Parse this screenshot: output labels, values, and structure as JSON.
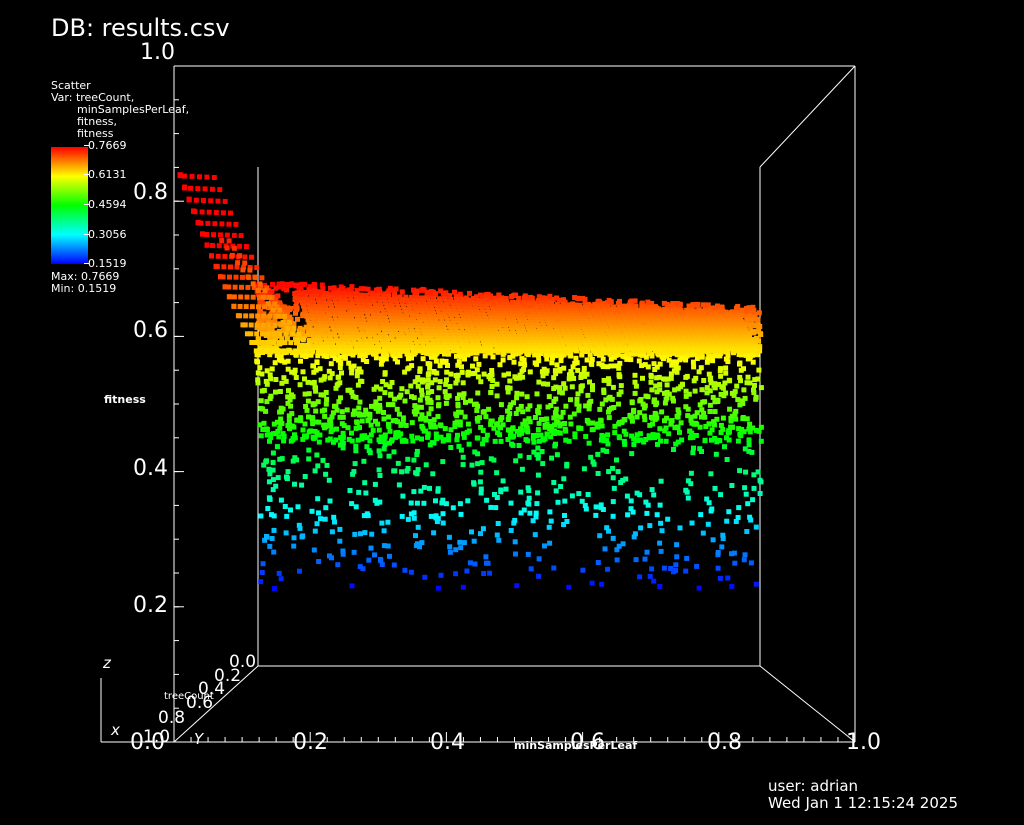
{
  "header": {
    "db_title": "DB: results.csv"
  },
  "legend": {
    "plot_type": "Scatter",
    "var_prefix": "Var: treeCount,",
    "var_lines": [
      "minSamplesPerLeaf,",
      "fitness,",
      "fitness"
    ],
    "colorbar_ticks": [
      "0.7669",
      "0.6131",
      "0.4594",
      "0.3056",
      "0.1519"
    ],
    "max_label": "Max: 0.7669",
    "min_label": "Min: 0.1519",
    "colors": [
      "#ff0000",
      "#ffff00",
      "#00ff00",
      "#00ffff",
      "#0000ff"
    ]
  },
  "axes": {
    "z_title": "fitness",
    "x_title": "minSamplesPerLeaf",
    "y_title": "treeCount",
    "z_ticks": [
      "1.0",
      "0.8",
      "0.6",
      "0.4",
      "0.2"
    ],
    "x_ticks": [
      "0.0",
      "0.2",
      "0.4",
      "0.6",
      "0.8",
      "1.0"
    ],
    "y_ticks": [
      "0.0",
      "0.2",
      "0.4",
      "0.6",
      "0.8",
      "1.0"
    ],
    "triad": {
      "z": "z",
      "x": "x",
      "y": "Y"
    }
  },
  "footer": {
    "user": "user: adrian",
    "datetime": "Wed Jan  1 12:15:24 2025"
  },
  "chart_data": {
    "type": "scatter",
    "title": "DB: results.csv",
    "xlabel": "minSamplesPerLeaf",
    "ylabel": "treeCount",
    "zlabel": "fitness",
    "xlim": [
      0.0,
      1.0
    ],
    "ylim": [
      0.0,
      1.0
    ],
    "zlim": [
      0.0,
      1.0
    ],
    "color_var": "fitness",
    "color_range": [
      0.1519,
      0.7669
    ],
    "grid": false,
    "legend_placement": "top-left",
    "point_count_approx": 4000,
    "trend": "fitness increases with treeCount and saturates near 0.77; lower fitness values sparse"
  }
}
